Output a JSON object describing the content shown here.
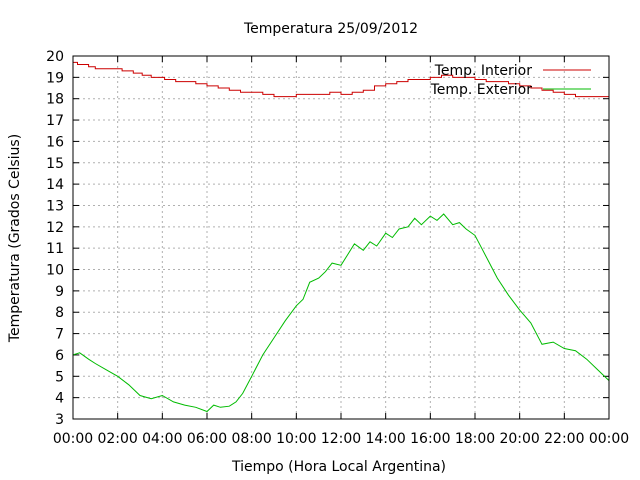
{
  "chart_data": {
    "type": "line",
    "title": "Temperatura 25/09/2012",
    "xlabel": "Tiempo (Hora Local Argentina)",
    "ylabel": "Temperatura (Grados Celsius)",
    "xlim": [
      0,
      24
    ],
    "ylim": [
      3,
      20
    ],
    "x_ticks": [
      "00:00",
      "02:00",
      "04:00",
      "06:00",
      "08:00",
      "10:00",
      "12:00",
      "14:00",
      "16:00",
      "18:00",
      "20:00",
      "22:00",
      "00:00"
    ],
    "y_ticks": [
      "3",
      "4",
      "5",
      "6",
      "7",
      "8",
      "9",
      "10",
      "11",
      "12",
      "13",
      "14",
      "15",
      "16",
      "17",
      "18",
      "19",
      "20"
    ],
    "grid": true,
    "legend_position": "top-right",
    "x_unit": "hours",
    "series": [
      {
        "name": "Temp. Interior",
        "color": "#cc0000",
        "step": true,
        "x": [
          0,
          0.2,
          0.7,
          1.0,
          1.6,
          2.2,
          2.7,
          3.1,
          3.5,
          4.1,
          4.6,
          5.0,
          5.5,
          6.0,
          6.5,
          7.0,
          7.5,
          8.0,
          8.5,
          9.0,
          9.5,
          10.0,
          10.5,
          11.0,
          11.5,
          12.0,
          12.5,
          13.0,
          13.5,
          14.0,
          14.5,
          15.0,
          15.5,
          16.0,
          16.5,
          17.0,
          17.5,
          18.0,
          18.5,
          19.0,
          19.5,
          20.0,
          20.5,
          21.0,
          21.5,
          22.0,
          22.5,
          23.0,
          23.5,
          24.0
        ],
        "y": [
          19.7,
          19.6,
          19.5,
          19.4,
          19.4,
          19.3,
          19.2,
          19.1,
          19.0,
          18.9,
          18.8,
          18.8,
          18.7,
          18.6,
          18.5,
          18.4,
          18.3,
          18.3,
          18.2,
          18.1,
          18.1,
          18.2,
          18.2,
          18.2,
          18.3,
          18.2,
          18.3,
          18.4,
          18.6,
          18.7,
          18.8,
          18.9,
          18.9,
          19.0,
          19.1,
          19.0,
          19.0,
          18.9,
          18.8,
          18.8,
          18.7,
          18.6,
          18.5,
          18.4,
          18.3,
          18.2,
          18.1,
          18.1,
          18.1,
          18.1
        ]
      },
      {
        "name": "Temp. Exterior",
        "color": "#00bb00",
        "step": false,
        "x": [
          0,
          0.3,
          0.7,
          1.0,
          1.5,
          2.0,
          2.5,
          3.0,
          3.5,
          4.0,
          4.5,
          5.0,
          5.5,
          6.0,
          6.3,
          6.6,
          7.0,
          7.3,
          7.6,
          8.0,
          8.5,
          9.0,
          9.5,
          10.0,
          10.3,
          10.6,
          11.0,
          11.3,
          11.6,
          12.0,
          12.3,
          12.6,
          13.0,
          13.3,
          13.6,
          14.0,
          14.3,
          14.6,
          15.0,
          15.3,
          15.6,
          16.0,
          16.3,
          16.6,
          17.0,
          17.3,
          17.6,
          18.0,
          18.3,
          18.6,
          19.0,
          19.5,
          20.0,
          20.5,
          21.0,
          21.5,
          22.0,
          22.5,
          23.0,
          23.5,
          24.0
        ],
        "y": [
          6.0,
          6.1,
          5.8,
          5.6,
          5.3,
          5.0,
          4.6,
          4.1,
          3.95,
          4.1,
          3.8,
          3.65,
          3.55,
          3.35,
          3.65,
          3.55,
          3.6,
          3.8,
          4.2,
          5.0,
          6.0,
          6.8,
          7.6,
          8.3,
          8.6,
          9.4,
          9.6,
          9.9,
          10.3,
          10.2,
          10.7,
          11.2,
          10.9,
          11.3,
          11.1,
          11.7,
          11.5,
          11.9,
          12.0,
          12.4,
          12.1,
          12.5,
          12.3,
          12.6,
          12.1,
          12.2,
          11.9,
          11.6,
          11.0,
          10.4,
          9.6,
          8.8,
          8.1,
          7.5,
          6.5,
          6.6,
          6.3,
          6.2,
          5.8,
          5.3,
          4.8
        ]
      }
    ]
  }
}
